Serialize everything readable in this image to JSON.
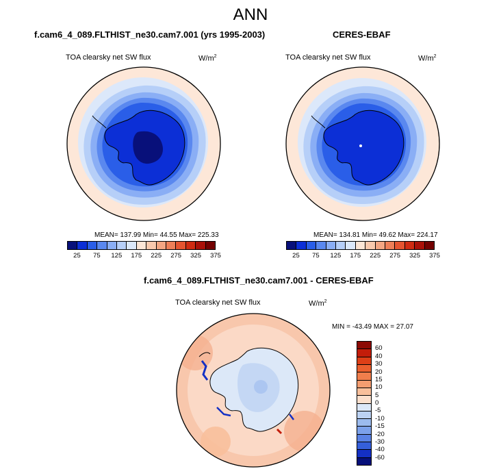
{
  "main_title": "ANN",
  "top_left": {
    "case_title": "f.cam6_4_089.FLTHIST_ne30.cam7.001 (yrs 1995-2003)",
    "label": "TOA clearsky net SW flux",
    "unit": "W/m",
    "unit_exp": "2",
    "stats": "MEAN= 137.99  Min=  44.55  Max= 225.33"
  },
  "top_right": {
    "case_title": "CERES-EBAF",
    "label": "TOA clearsky net SW flux",
    "unit": "W/m",
    "unit_exp": "2",
    "stats": "MEAN= 134.81  Min=  49.62  Max= 224.17"
  },
  "bottom": {
    "case_title": "f.cam6_4_089.FLTHIST_ne30.cam7.001 - CERES-EBAF",
    "label": "TOA clearsky net SW flux",
    "unit": "W/m",
    "unit_exp": "2",
    "stats": "MIN = -43.49 MAX =  27.07"
  },
  "colorbar_abs": {
    "ticks": [
      "25",
      "75",
      "125",
      "175",
      "225",
      "275",
      "325",
      "375"
    ],
    "colors": [
      "#08107a",
      "#0c2fd6",
      "#2a5ee8",
      "#5a88ef",
      "#8aaef5",
      "#b6cff8",
      "#dbe8fa",
      "#fce6d6",
      "#f9c9ad",
      "#f4a683",
      "#ee7f58",
      "#e55430",
      "#cf2b12",
      "#a91008",
      "#730000"
    ]
  },
  "colorbar_diff": {
    "ticks": [
      "60",
      "40",
      "30",
      "20",
      "15",
      "10",
      "5",
      "0",
      "-5",
      "-10",
      "-15",
      "-20",
      "-30",
      "-40",
      "-60"
    ],
    "colors": [
      "#8c0a04",
      "#c31d0a",
      "#dd3f17",
      "#ea5f2e",
      "#f07e4c",
      "#f49d70",
      "#f8bf9b",
      "#fbdfcc",
      "#dce8f8",
      "#bcd2f3",
      "#9cbbee",
      "#7ca1ea",
      "#5a82e4",
      "#355fdb",
      "#1430c4",
      "#06107a"
    ]
  }
}
